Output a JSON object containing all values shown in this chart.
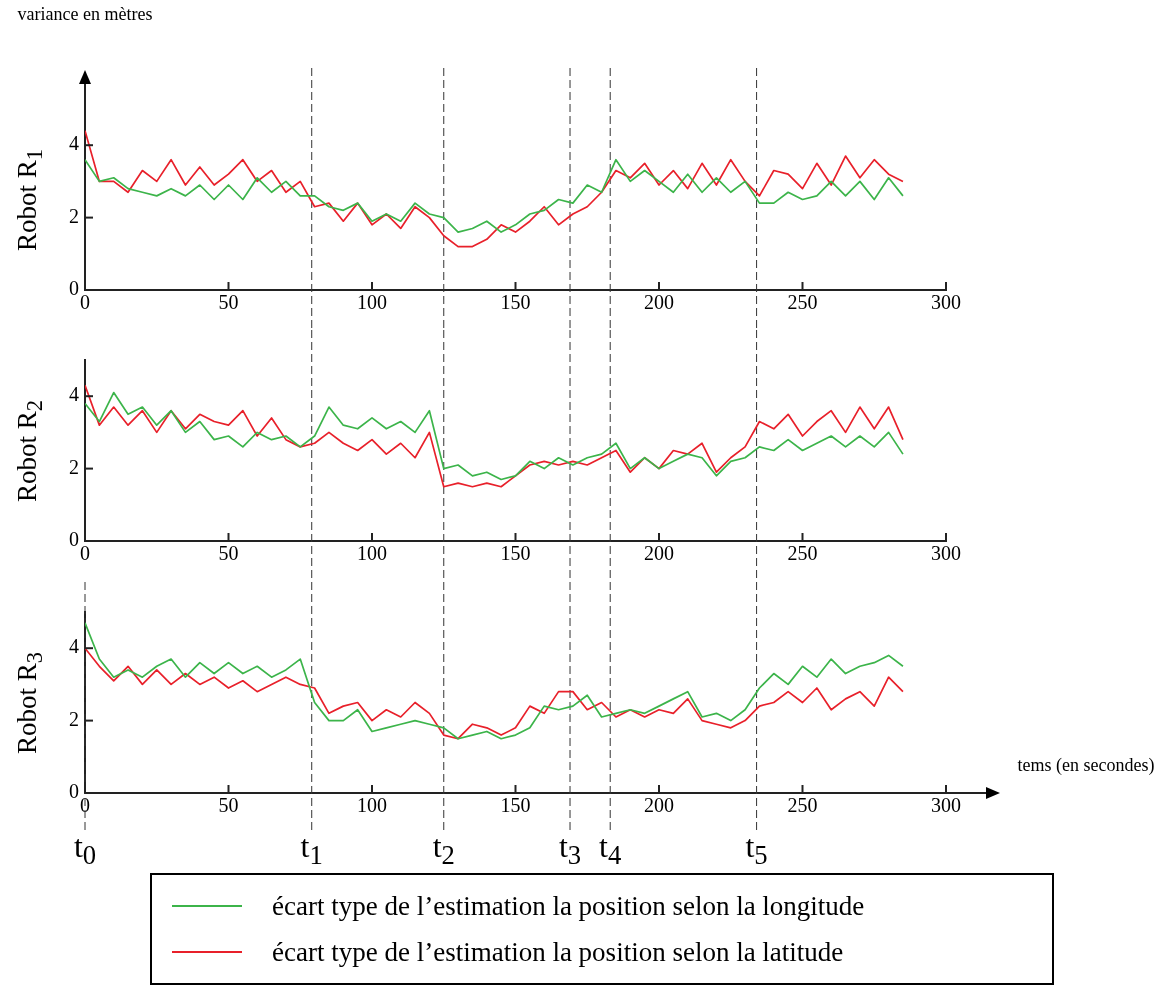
{
  "chart_data": [
    {
      "type": "line",
      "title": "Robot R$_{1}$",
      "ylabel": "variance en mètres",
      "xlim": [
        0,
        300
      ],
      "xticks": [
        0,
        50,
        100,
        150,
        200,
        250,
        300
      ],
      "ylim": [
        0,
        5
      ],
      "yticks": [
        0,
        2,
        4
      ],
      "ref_lines": [
        {
          "axis": "x",
          "value": 79
        },
        {
          "axis": "x",
          "value": 125
        },
        {
          "axis": "x",
          "value": 169
        },
        {
          "axis": "x",
          "value": 183
        },
        {
          "axis": "x",
          "value": 234
        }
      ],
      "x": [
        0,
        5,
        10,
        15,
        20,
        25,
        30,
        35,
        40,
        45,
        50,
        55,
        60,
        65,
        70,
        75,
        80,
        85,
        90,
        95,
        100,
        105,
        110,
        115,
        120,
        125,
        130,
        135,
        140,
        145,
        150,
        155,
        160,
        165,
        170,
        175,
        180,
        185,
        190,
        195,
        200,
        205,
        210,
        215,
        220,
        225,
        230,
        235,
        240,
        245,
        250,
        255,
        260,
        265,
        270,
        275,
        280,
        285
      ],
      "series": [
        {
          "color": "#3cb44a",
          "values": [
            3.6,
            3.0,
            3.1,
            2.8,
            2.7,
            2.6,
            2.8,
            2.6,
            2.9,
            2.5,
            2.9,
            2.5,
            3.1,
            2.7,
            3.0,
            2.6,
            2.6,
            2.3,
            2.2,
            2.4,
            1.9,
            2.1,
            1.9,
            2.4,
            2.1,
            2.0,
            1.6,
            1.7,
            1.9,
            1.6,
            1.8,
            2.1,
            2.2,
            2.5,
            2.4,
            2.9,
            2.7,
            3.6,
            3.0,
            3.3,
            3.0,
            2.7,
            3.2,
            2.7,
            3.1,
            2.7,
            3.0,
            2.4,
            2.4,
            2.7,
            2.5,
            2.6,
            3.0,
            2.6,
            3.0,
            2.5,
            3.1,
            2.6
          ]
        },
        {
          "color": "#e8202a",
          "values": [
            4.4,
            3.0,
            3.0,
            2.7,
            3.3,
            3.0,
            3.6,
            2.9,
            3.4,
            2.9,
            3.2,
            3.6,
            3.0,
            3.3,
            2.7,
            3.0,
            2.3,
            2.4,
            1.9,
            2.4,
            1.8,
            2.1,
            1.7,
            2.3,
            2.0,
            1.5,
            1.2,
            1.2,
            1.4,
            1.8,
            1.6,
            1.9,
            2.3,
            1.8,
            2.1,
            2.3,
            2.7,
            3.3,
            3.1,
            3.5,
            2.9,
            3.3,
            2.8,
            3.5,
            2.9,
            3.6,
            3.0,
            2.6,
            3.3,
            3.2,
            2.8,
            3.5,
            2.9,
            3.7,
            3.1,
            3.6,
            3.2,
            3.0
          ]
        }
      ]
    },
    {
      "type": "line",
      "title": "Robot R$_{2}$",
      "xlim": [
        0,
        300
      ],
      "xticks": [
        0,
        50,
        100,
        150,
        200,
        250,
        300
      ],
      "ylim": [
        0,
        5
      ],
      "yticks": [
        0,
        2,
        4
      ],
      "ref_lines": [
        {
          "axis": "x",
          "value": 79
        },
        {
          "axis": "x",
          "value": 125
        },
        {
          "axis": "x",
          "value": 169
        },
        {
          "axis": "x",
          "value": 183
        },
        {
          "axis": "x",
          "value": 234
        }
      ],
      "x": [
        0,
        5,
        10,
        15,
        20,
        25,
        30,
        35,
        40,
        45,
        50,
        55,
        60,
        65,
        70,
        75,
        80,
        85,
        90,
        95,
        100,
        105,
        110,
        115,
        120,
        125,
        130,
        135,
        140,
        145,
        150,
        155,
        160,
        165,
        170,
        175,
        180,
        185,
        190,
        195,
        200,
        205,
        210,
        215,
        220,
        225,
        230,
        235,
        240,
        245,
        250,
        255,
        260,
        265,
        270,
        275,
        280,
        285
      ],
      "series": [
        {
          "color": "#3cb44a",
          "values": [
            3.8,
            3.3,
            4.1,
            3.5,
            3.7,
            3.2,
            3.6,
            3.0,
            3.3,
            2.8,
            2.9,
            2.6,
            3.0,
            2.8,
            2.9,
            2.6,
            2.9,
            3.7,
            3.2,
            3.1,
            3.4,
            3.1,
            3.3,
            3.0,
            3.6,
            2.0,
            2.1,
            1.8,
            1.9,
            1.7,
            1.8,
            2.2,
            2.0,
            2.3,
            2.1,
            2.3,
            2.4,
            2.7,
            2.0,
            2.3,
            2.0,
            2.2,
            2.4,
            2.3,
            1.8,
            2.2,
            2.3,
            2.6,
            2.5,
            2.8,
            2.5,
            2.7,
            2.9,
            2.6,
            2.9,
            2.6,
            3.0,
            2.4
          ]
        },
        {
          "color": "#e8202a",
          "values": [
            4.3,
            3.2,
            3.7,
            3.2,
            3.6,
            3.0,
            3.6,
            3.1,
            3.5,
            3.3,
            3.2,
            3.6,
            2.9,
            3.4,
            2.8,
            2.6,
            2.7,
            3.0,
            2.7,
            2.5,
            2.8,
            2.4,
            2.7,
            2.3,
            3.0,
            1.5,
            1.6,
            1.5,
            1.6,
            1.5,
            1.8,
            2.1,
            2.2,
            2.1,
            2.2,
            2.1,
            2.3,
            2.5,
            1.9,
            2.3,
            2.0,
            2.5,
            2.4,
            2.7,
            1.9,
            2.3,
            2.6,
            3.3,
            3.1,
            3.5,
            2.9,
            3.3,
            3.6,
            3.0,
            3.7,
            3.1,
            3.7,
            2.8
          ]
        }
      ]
    },
    {
      "type": "line",
      "title": "Robot R$_{3}$",
      "xlabel": "tems (en secondes)",
      "legend": "bottom",
      "xlim": [
        0,
        300
      ],
      "xticks": [
        0,
        50,
        100,
        150,
        200,
        250,
        300
      ],
      "ylim": [
        0,
        5
      ],
      "yticks": [
        0,
        2,
        4
      ],
      "ref_lines": [
        {
          "axis": "x",
          "value": 0,
          "label": "t$_{0}$"
        },
        {
          "axis": "x",
          "value": 79,
          "label": "t$_{1}$"
        },
        {
          "axis": "x",
          "value": 125,
          "label": "t$_{2}$"
        },
        {
          "axis": "x",
          "value": 169,
          "label": "t$_{3}$"
        },
        {
          "axis": "x",
          "value": 183,
          "label": "t$_{4}$"
        },
        {
          "axis": "x",
          "value": 234,
          "label": "t$_{5}$"
        }
      ],
      "x": [
        0,
        5,
        10,
        15,
        20,
        25,
        30,
        35,
        40,
        45,
        50,
        55,
        60,
        65,
        70,
        75,
        80,
        85,
        90,
        95,
        100,
        105,
        110,
        115,
        120,
        125,
        130,
        135,
        140,
        145,
        150,
        155,
        160,
        165,
        170,
        175,
        180,
        185,
        190,
        195,
        200,
        205,
        210,
        215,
        220,
        225,
        230,
        235,
        240,
        245,
        250,
        255,
        260,
        265,
        270,
        275,
        280,
        285
      ],
      "series": [
        {
          "name": "écart type de l’estimation la position selon la longitude",
          "color": "#3cb44a",
          "values": [
            4.7,
            3.7,
            3.2,
            3.4,
            3.2,
            3.5,
            3.7,
            3.2,
            3.6,
            3.3,
            3.6,
            3.3,
            3.5,
            3.2,
            3.4,
            3.7,
            2.5,
            2.0,
            2.0,
            2.3,
            1.7,
            1.8,
            1.9,
            2.0,
            1.9,
            1.8,
            1.5,
            1.6,
            1.7,
            1.5,
            1.6,
            1.8,
            2.4,
            2.3,
            2.4,
            2.7,
            2.1,
            2.2,
            2.3,
            2.2,
            2.4,
            2.6,
            2.8,
            2.1,
            2.2,
            2.0,
            2.3,
            2.9,
            3.3,
            3.0,
            3.5,
            3.2,
            3.7,
            3.3,
            3.5,
            3.6,
            3.8,
            3.5
          ]
        },
        {
          "name": "écart type de l’estimation la position selon la latitude",
          "color": "#e8202a",
          "values": [
            4.0,
            3.5,
            3.1,
            3.5,
            3.0,
            3.4,
            3.0,
            3.3,
            3.0,
            3.2,
            2.9,
            3.1,
            2.8,
            3.0,
            3.2,
            3.0,
            2.9,
            2.2,
            2.4,
            2.5,
            2.0,
            2.3,
            2.1,
            2.5,
            2.2,
            1.6,
            1.5,
            1.9,
            1.8,
            1.6,
            1.8,
            2.4,
            2.2,
            2.8,
            2.8,
            2.3,
            2.5,
            2.1,
            2.3,
            2.1,
            2.3,
            2.2,
            2.6,
            2.0,
            1.9,
            1.8,
            2.0,
            2.4,
            2.5,
            2.8,
            2.5,
            2.9,
            2.3,
            2.6,
            2.8,
            2.4,
            3.2,
            2.8
          ]
        }
      ]
    }
  ]
}
